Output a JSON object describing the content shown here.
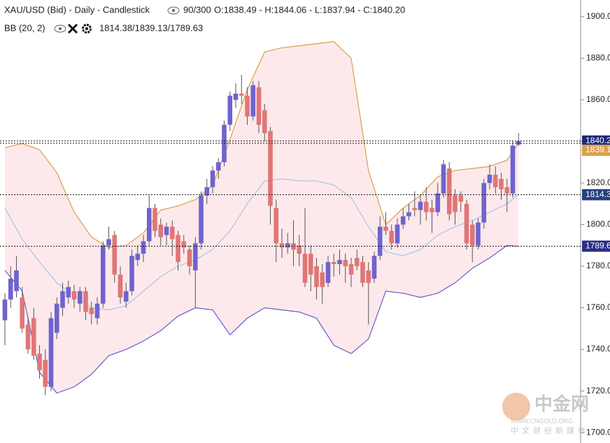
{
  "chart_data": {
    "type": "candlestick",
    "title": "XAU/USD (Bid) - Daily - Candlestick",
    "bars_shown": "90/300",
    "ohlc_label": "O:1838.49 - H:1844.06 - L:1837.94 - C:1840.20",
    "indicator": "BB (20, 2)",
    "indicator_values": "1814.38/1839.13/1789.63",
    "open": [
      1754,
      1764,
      1768,
      1765,
      1752,
      1755,
      1738,
      1735,
      1722,
      1748,
      1760,
      1765,
      1768,
      1762,
      1768,
      1760,
      1755,
      1762,
      1790,
      1795,
      1776,
      1763,
      1768,
      1783,
      1786,
      1792,
      1808,
      1800,
      1795,
      1799,
      1795,
      1792,
      1788,
      1778,
      1791,
      1814,
      1818,
      1826,
      1830,
      1848,
      1860,
      1863,
      1862,
      1852,
      1866,
      1855,
      1845,
      1808,
      1791,
      1789,
      1791,
      1790,
      1786,
      1786,
      1780,
      1777,
      1772,
      1782,
      1781,
      1783,
      1781,
      1784,
      1782,
      1778,
      1774,
      1785,
      1799,
      1797,
      1791,
      1800,
      1804,
      1808,
      1807,
      1811,
      1808,
      1806,
      1815,
      1827,
      1814,
      1814,
      1810,
      1800,
      1790,
      1801,
      1820,
      1824,
      1822,
      1818,
      1815,
      1838.49
    ],
    "high": [
      1767,
      1780,
      1785,
      1770,
      1756,
      1760,
      1742,
      1740,
      1758,
      1765,
      1772,
      1773,
      1771,
      1770,
      1770,
      1763,
      1765,
      1792,
      1799,
      1797,
      1780,
      1772,
      1788,
      1790,
      1795,
      1814,
      1810,
      1803,
      1801,
      1802,
      1797,
      1795,
      1790,
      1794,
      1816,
      1822,
      1828,
      1832,
      1850,
      1864,
      1868,
      1872,
      1866,
      1869,
      1869,
      1858,
      1847,
      1812,
      1798,
      1796,
      1802,
      1795,
      1808,
      1790,
      1784,
      1781,
      1785,
      1786,
      1788,
      1786,
      1784,
      1788,
      1785,
      1782,
      1787,
      1804,
      1806,
      1800,
      1803,
      1808,
      1810,
      1816,
      1814,
      1818,
      1812,
      1820,
      1831,
      1830,
      1817,
      1816,
      1812,
      1802,
      1803,
      1822,
      1829,
      1828,
      1825,
      1822,
      1840,
      1844.06
    ],
    "low": [
      1742,
      1760,
      1765,
      1748,
      1738,
      1735,
      1726,
      1718,
      1720,
      1745,
      1756,
      1762,
      1760,
      1758,
      1754,
      1752,
      1752,
      1760,
      1788,
      1772,
      1762,
      1760,
      1766,
      1780,
      1782,
      1790,
      1794,
      1790,
      1790,
      1785,
      1778,
      1786,
      1776,
      1760,
      1788,
      1810,
      1815,
      1822,
      1828,
      1845,
      1856,
      1858,
      1848,
      1850,
      1844,
      1840,
      1800,
      1782,
      1784,
      1786,
      1780,
      1780,
      1770,
      1768,
      1764,
      1762,
      1770,
      1775,
      1776,
      1772,
      1770,
      1778,
      1770,
      1752,
      1772,
      1783,
      1795,
      1788,
      1789,
      1798,
      1802,
      1804,
      1800,
      1802,
      1796,
      1804,
      1813,
      1802,
      1800,
      1806,
      1788,
      1782,
      1788,
      1798,
      1817,
      1815,
      1812,
      1806,
      1813,
      1837.94
    ],
    "close": [
      1764,
      1774,
      1778,
      1750,
      1740,
      1737,
      1730,
      1722,
      1755,
      1762,
      1768,
      1770,
      1764,
      1768,
      1758,
      1757,
      1762,
      1790,
      1793,
      1776,
      1765,
      1768,
      1785,
      1786,
      1792,
      1808,
      1797,
      1794,
      1799,
      1793,
      1782,
      1789,
      1780,
      1791,
      1814,
      1818,
      1826,
      1830,
      1848,
      1862,
      1863,
      1862,
      1852,
      1867,
      1848,
      1844,
      1809,
      1791,
      1789,
      1791,
      1788,
      1786,
      1772,
      1776,
      1770,
      1770,
      1782,
      1781,
      1783,
      1780,
      1776,
      1780,
      1772,
      1772,
      1785,
      1799,
      1797,
      1791,
      1800,
      1804,
      1806,
      1807,
      1811,
      1806,
      1806,
      1815,
      1829,
      1805,
      1806,
      1811,
      1791,
      1790,
      1801,
      1820,
      1824,
      1818,
      1817,
      1815,
      1838,
      1840.2
    ],
    "up_color": "#6f63cf",
    "down_color": "#e07676",
    "bollinger": {
      "x": [
        0,
        3,
        6,
        9,
        12,
        15,
        18,
        21,
        24,
        27,
        30,
        33,
        36,
        39,
        42,
        45,
        48,
        51,
        54,
        57,
        60,
        63,
        66,
        69,
        72,
        75,
        78,
        81,
        84,
        87,
        89
      ],
      "upper": [
        1837,
        1839,
        1836,
        1825,
        1806,
        1794,
        1789,
        1790,
        1796,
        1807,
        1809,
        1812,
        1819,
        1841,
        1865,
        1883,
        1885,
        1886,
        1887,
        1888,
        1880,
        1826,
        1800,
        1808,
        1814,
        1823,
        1826,
        1827,
        1828,
        1831,
        1839.13
      ],
      "middle": [
        1808,
        1793,
        1782,
        1772,
        1766,
        1760,
        1759,
        1761,
        1768,
        1775,
        1780,
        1783,
        1788,
        1797,
        1810,
        1821,
        1822,
        1821,
        1821,
        1819,
        1813,
        1799,
        1787,
        1785,
        1788,
        1795,
        1799,
        1802,
        1806,
        1810,
        1814.38
      ],
      "lower": [
        1778,
        1768,
        1729,
        1719,
        1722,
        1728,
        1737,
        1740,
        1744,
        1749,
        1756,
        1760,
        1759,
        1747,
        1755,
        1760,
        1759,
        1758,
        1755,
        1742,
        1738,
        1745,
        1768,
        1767,
        1765,
        1767,
        1772,
        1779,
        1784,
        1790,
        1789.63
      ],
      "upper_color": "#d9a04a",
      "middle_color": "#a9c4e6",
      "lower_color": "#6a5acd",
      "fill_color": "#fde9eb"
    },
    "ylim": [
      1695,
      1908
    ],
    "yticks": [
      {
        "value": 1700,
        "label": "1700.0"
      },
      {
        "value": 1720,
        "label": "1720.0"
      },
      {
        "value": 1740,
        "label": "1740.0"
      },
      {
        "value": 1760,
        "label": "1760.0"
      },
      {
        "value": 1780,
        "label": "1780.0"
      },
      {
        "value": 1800,
        "label": "1800.0"
      },
      {
        "value": 1820,
        "label": "1820.0"
      },
      {
        "value": 1840,
        "label": "1840.0"
      },
      {
        "value": 1860,
        "label": "1860.0"
      },
      {
        "value": 1880,
        "label": "1880.0"
      },
      {
        "value": 1900,
        "label": "1900.0"
      }
    ]
  },
  "watermark": {
    "brand": "中金网",
    "site": "WWW.CNGOLD.ORG",
    "slogan": "中文财经新媒体"
  }
}
